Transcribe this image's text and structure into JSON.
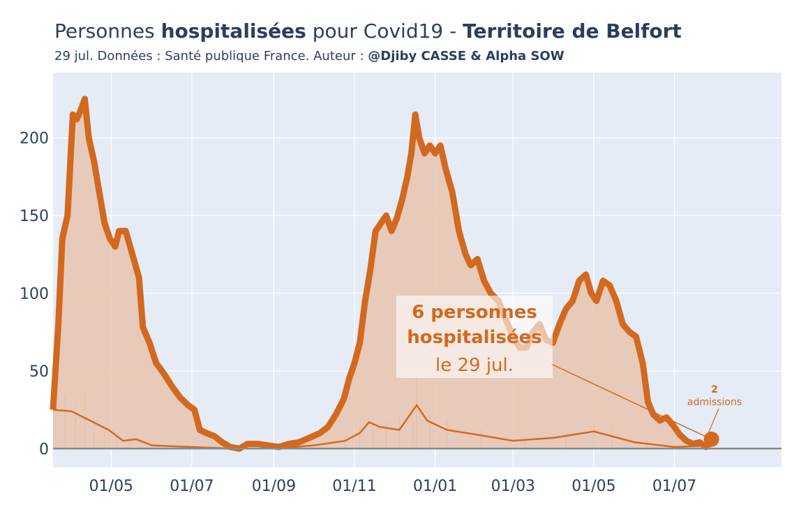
{
  "header": {
    "title_prefix": "Personnes ",
    "title_bold1": "hospitalisées",
    "title_mid": " pour Covid19 - ",
    "title_bold2": "Territoire de Belfort",
    "subtitle_prefix": "29 jul. Données : Santé publique France. Auteur : ",
    "subtitle_bold": "@Djiby CASSE & Alpha SOW"
  },
  "annotation": {
    "line1": "6 personnes",
    "line2": "hospitalisées",
    "line3": "le 29 jul.",
    "admissions_value": "2",
    "admissions_label": "admissions"
  },
  "colors": {
    "main": "#d2691e",
    "fill": "#e8c4ae",
    "plot_bg": "#e5ecf6",
    "grid": "#ffffff",
    "zero_line": "#8a8a8a",
    "text": "#2a3f5f"
  },
  "chart_data": {
    "type": "line",
    "title": "Personnes hospitalisées pour Covid19 - Territoire de Belfort",
    "x_unit": "date",
    "xlim": [
      "2020-03-18",
      "2021-09-20"
    ],
    "ylim": [
      -12,
      242
    ],
    "yticks": [
      0,
      50,
      100,
      150,
      200
    ],
    "ytick_labels": [
      "0",
      "50",
      "100",
      "150",
      "200"
    ],
    "xticks": [
      "2020-05-01",
      "2020-07-01",
      "2020-09-01",
      "2020-11-01",
      "2021-01-01",
      "2021-03-01",
      "2021-05-01",
      "2021-07-01"
    ],
    "xtick_labels": [
      "01/05",
      "01/07",
      "01/09",
      "01/11",
      "01/01",
      "01/03",
      "01/05",
      "01/07"
    ],
    "grid": true,
    "series": [
      {
        "kind": "hospitalisations",
        "points": [
          [
            "2020-03-18",
            25
          ],
          [
            "2020-03-22",
            80
          ],
          [
            "2020-03-25",
            135
          ],
          [
            "2020-03-29",
            150
          ],
          [
            "2020-04-02",
            215
          ],
          [
            "2020-04-05",
            212
          ],
          [
            "2020-04-08",
            218
          ],
          [
            "2020-04-11",
            225
          ],
          [
            "2020-04-14",
            200
          ],
          [
            "2020-04-18",
            185
          ],
          [
            "2020-04-22",
            165
          ],
          [
            "2020-04-26",
            145
          ],
          [
            "2020-04-30",
            135
          ],
          [
            "2020-05-04",
            130
          ],
          [
            "2020-05-07",
            140
          ],
          [
            "2020-05-12",
            140
          ],
          [
            "2020-05-17",
            125
          ],
          [
            "2020-05-22",
            110
          ],
          [
            "2020-05-25",
            78
          ],
          [
            "2020-05-30",
            68
          ],
          [
            "2020-06-04",
            55
          ],
          [
            "2020-06-10",
            48
          ],
          [
            "2020-06-16",
            40
          ],
          [
            "2020-06-22",
            33
          ],
          [
            "2020-06-28",
            28
          ],
          [
            "2020-07-03",
            25
          ],
          [
            "2020-07-07",
            12
          ],
          [
            "2020-07-12",
            10
          ],
          [
            "2020-07-18",
            8
          ],
          [
            "2020-07-24",
            4
          ],
          [
            "2020-07-30",
            1
          ],
          [
            "2020-08-06",
            0
          ],
          [
            "2020-08-12",
            3
          ],
          [
            "2020-08-20",
            3
          ],
          [
            "2020-08-28",
            2
          ],
          [
            "2020-09-05",
            1
          ],
          [
            "2020-09-12",
            3
          ],
          [
            "2020-09-20",
            4
          ],
          [
            "2020-09-28",
            7
          ],
          [
            "2020-10-06",
            10
          ],
          [
            "2020-10-12",
            14
          ],
          [
            "2020-10-18",
            22
          ],
          [
            "2020-10-24",
            32
          ],
          [
            "2020-10-28",
            45
          ],
          [
            "2020-11-01",
            55
          ],
          [
            "2020-11-05",
            68
          ],
          [
            "2020-11-09",
            95
          ],
          [
            "2020-11-13",
            115
          ],
          [
            "2020-11-17",
            140
          ],
          [
            "2020-11-21",
            145
          ],
          [
            "2020-11-25",
            150
          ],
          [
            "2020-11-29",
            140
          ],
          [
            "2020-12-03",
            148
          ],
          [
            "2020-12-07",
            160
          ],
          [
            "2020-12-11",
            175
          ],
          [
            "2020-12-14",
            190
          ],
          [
            "2020-12-17",
            215
          ],
          [
            "2020-12-20",
            200
          ],
          [
            "2020-12-24",
            190
          ],
          [
            "2020-12-28",
            195
          ],
          [
            "2021-01-01",
            190
          ],
          [
            "2021-01-05",
            195
          ],
          [
            "2021-01-09",
            180
          ],
          [
            "2021-01-14",
            165
          ],
          [
            "2021-01-19",
            140
          ],
          [
            "2021-01-24",
            125
          ],
          [
            "2021-01-28",
            118
          ],
          [
            "2021-02-02",
            122
          ],
          [
            "2021-02-07",
            108
          ],
          [
            "2021-02-12",
            100
          ],
          [
            "2021-02-18",
            95
          ],
          [
            "2021-02-24",
            82
          ],
          [
            "2021-03-01",
            72
          ],
          [
            "2021-03-06",
            65
          ],
          [
            "2021-03-11",
            65
          ],
          [
            "2021-03-16",
            75
          ],
          [
            "2021-03-21",
            80
          ],
          [
            "2021-03-26",
            70
          ],
          [
            "2021-03-31",
            68
          ],
          [
            "2021-04-05",
            80
          ],
          [
            "2021-04-10",
            90
          ],
          [
            "2021-04-15",
            95
          ],
          [
            "2021-04-20",
            108
          ],
          [
            "2021-04-25",
            112
          ],
          [
            "2021-04-29",
            100
          ],
          [
            "2021-05-03",
            95
          ],
          [
            "2021-05-08",
            108
          ],
          [
            "2021-05-13",
            105
          ],
          [
            "2021-05-18",
            95
          ],
          [
            "2021-05-23",
            80
          ],
          [
            "2021-05-28",
            75
          ],
          [
            "2021-06-02",
            72
          ],
          [
            "2021-06-07",
            55
          ],
          [
            "2021-06-11",
            30
          ],
          [
            "2021-06-15",
            22
          ],
          [
            "2021-06-20",
            18
          ],
          [
            "2021-06-25",
            20
          ],
          [
            "2021-06-30",
            15
          ],
          [
            "2021-07-05",
            9
          ],
          [
            "2021-07-10",
            5
          ],
          [
            "2021-07-15",
            3
          ],
          [
            "2021-07-20",
            4
          ],
          [
            "2021-07-25",
            1
          ],
          [
            "2021-07-29",
            6
          ]
        ]
      },
      {
        "kind": "admissions",
        "points": [
          [
            "2020-03-18",
            25
          ],
          [
            "2020-04-01",
            24
          ],
          [
            "2020-04-15",
            18
          ],
          [
            "2020-04-29",
            12
          ],
          [
            "2020-05-10",
            5
          ],
          [
            "2020-05-20",
            6
          ],
          [
            "2020-06-01",
            2
          ],
          [
            "2020-07-01",
            1
          ],
          [
            "2020-08-01",
            0
          ],
          [
            "2020-09-01",
            0
          ],
          [
            "2020-10-01",
            2
          ],
          [
            "2020-10-25",
            5
          ],
          [
            "2020-11-05",
            10
          ],
          [
            "2020-11-12",
            17
          ],
          [
            "2020-11-20",
            14
          ],
          [
            "2020-12-05",
            12
          ],
          [
            "2020-12-18",
            28
          ],
          [
            "2020-12-26",
            18
          ],
          [
            "2021-01-10",
            12
          ],
          [
            "2021-02-01",
            9
          ],
          [
            "2021-03-01",
            5
          ],
          [
            "2021-04-01",
            7
          ],
          [
            "2021-05-01",
            11
          ],
          [
            "2021-06-01",
            4
          ],
          [
            "2021-07-01",
            1
          ],
          [
            "2021-07-29",
            2
          ]
        ]
      }
    ],
    "bars": [
      [
        "2020-03-20",
        42
      ],
      [
        "2020-03-27",
        35
      ],
      [
        "2020-04-04",
        28
      ],
      [
        "2020-04-11",
        38
      ],
      [
        "2020-04-18",
        20
      ],
      [
        "2020-04-26",
        15
      ],
      [
        "2020-05-05",
        10
      ],
      [
        "2020-05-15",
        8
      ],
      [
        "2020-06-01",
        4
      ],
      [
        "2020-10-25",
        8
      ],
      [
        "2020-11-05",
        14
      ],
      [
        "2020-11-15",
        22
      ],
      [
        "2020-11-25",
        18
      ],
      [
        "2020-12-05",
        20
      ],
      [
        "2020-12-15",
        32
      ],
      [
        "2020-12-18",
        48
      ],
      [
        "2020-12-28",
        22
      ],
      [
        "2021-01-10",
        18
      ],
      [
        "2021-02-05",
        12
      ],
      [
        "2021-03-10",
        8
      ],
      [
        "2021-04-10",
        10
      ],
      [
        "2021-05-01",
        16
      ],
      [
        "2021-05-15",
        14
      ],
      [
        "2021-06-10",
        6
      ],
      [
        "2021-07-15",
        3
      ]
    ],
    "last_point": [
      "2021-07-29",
      6
    ]
  }
}
